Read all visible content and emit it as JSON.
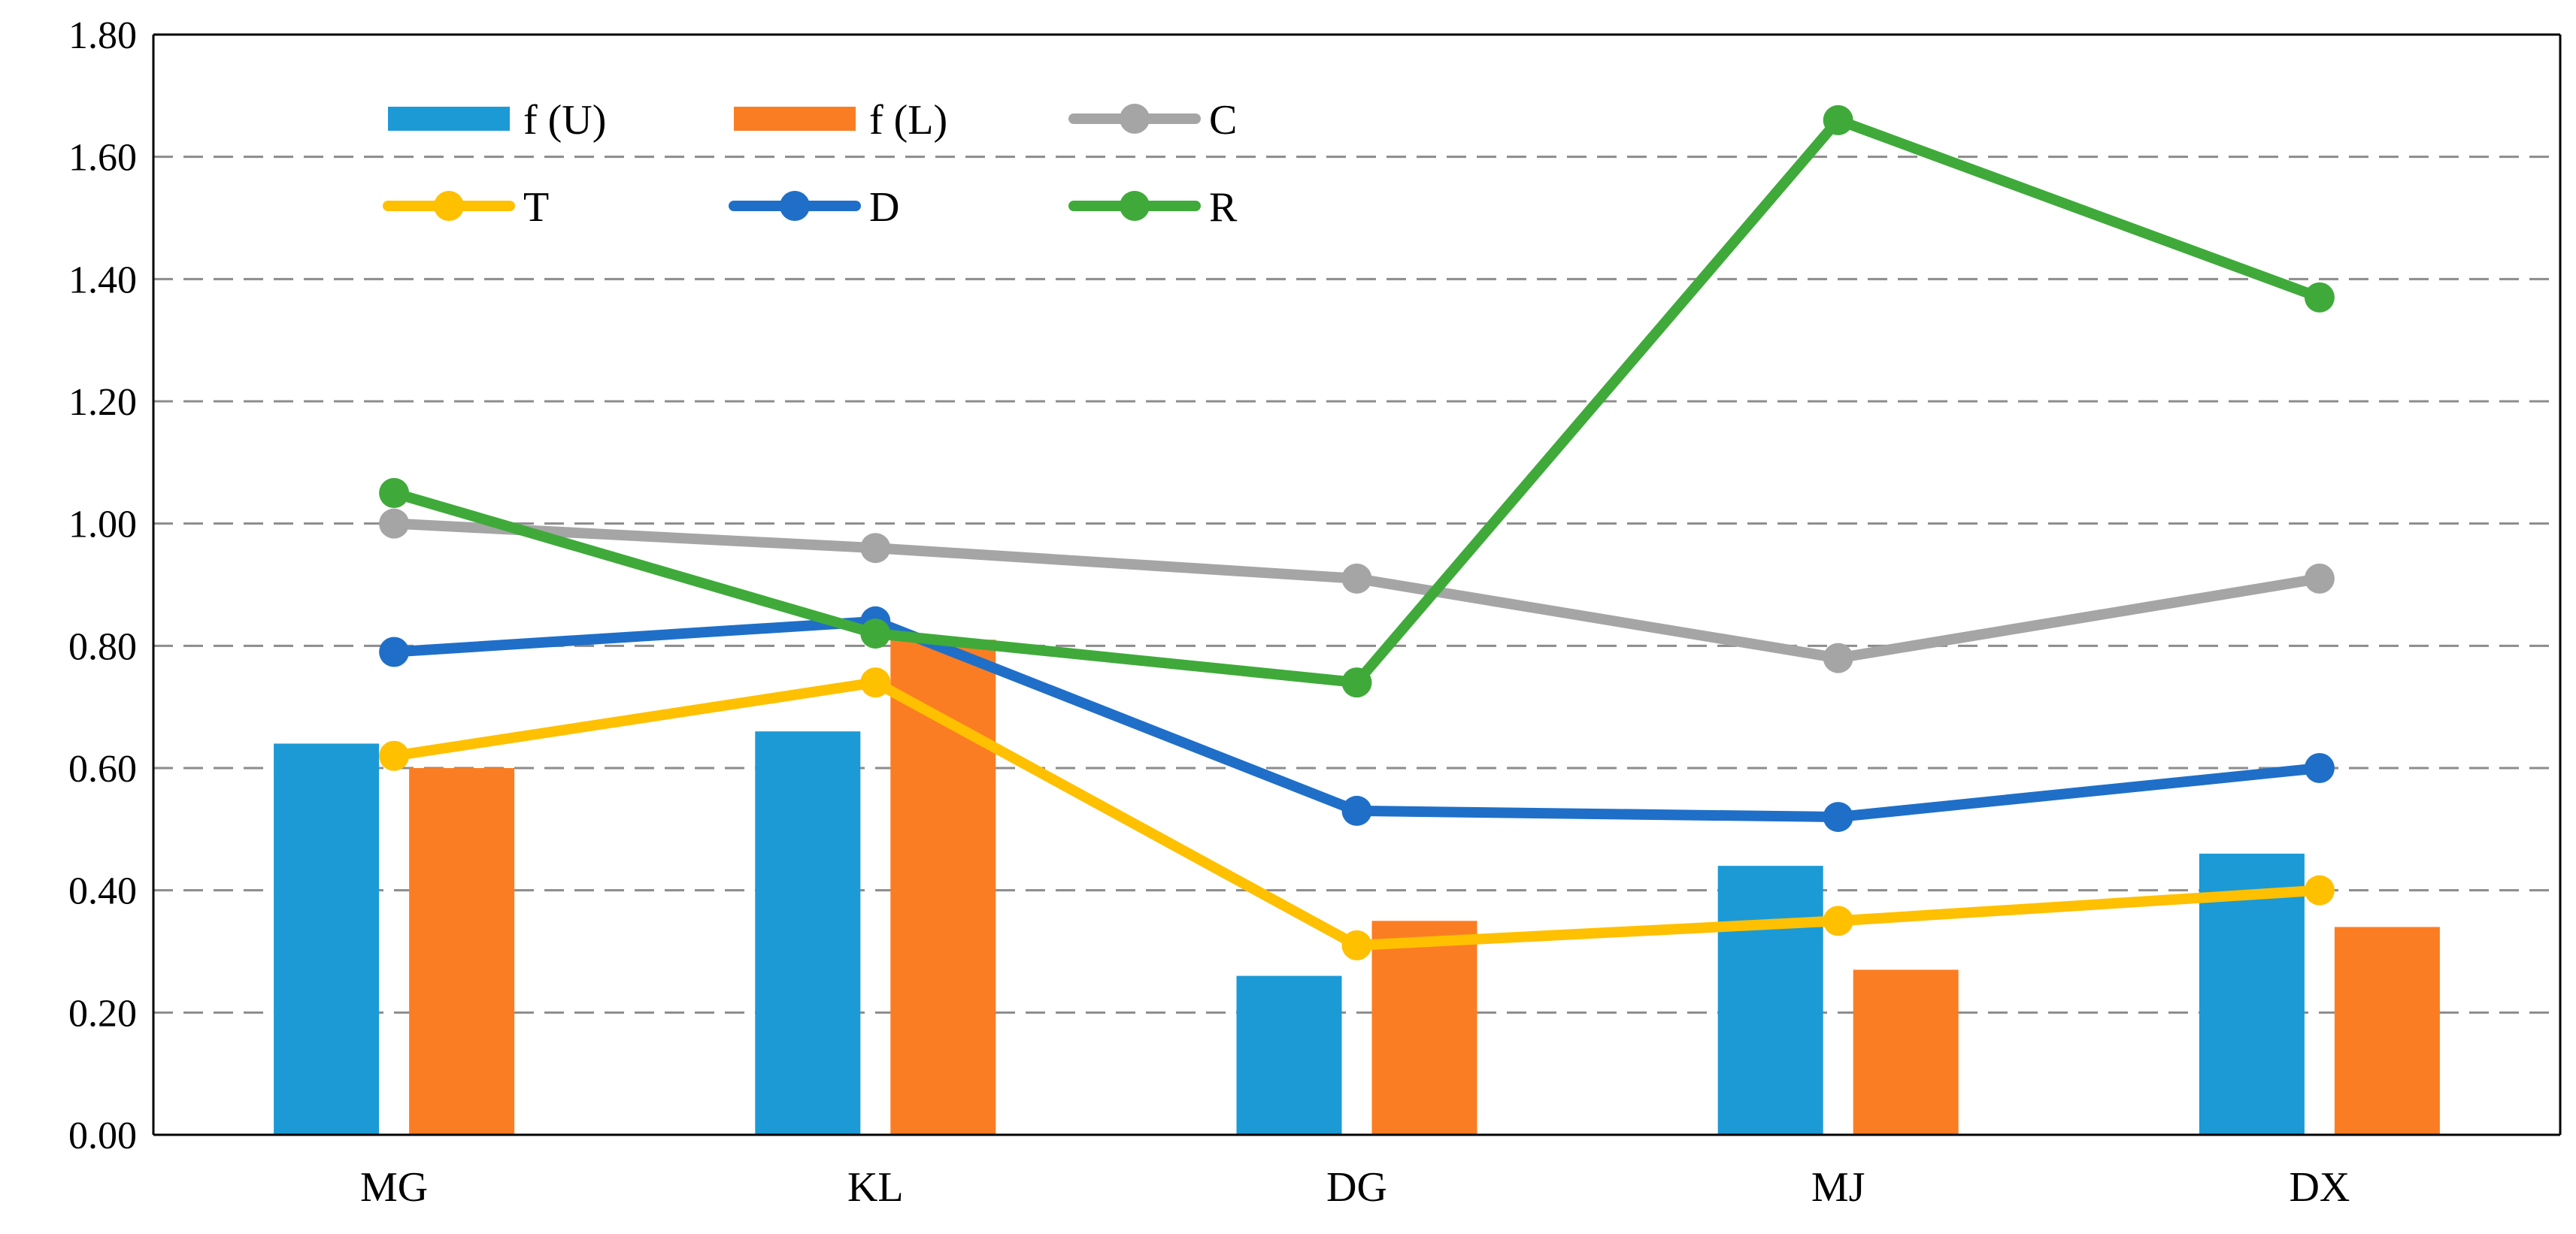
{
  "chart_data": {
    "type": "bar",
    "title": "",
    "xlabel": "",
    "ylabel": "",
    "categories": [
      "MG",
      "KL",
      "DG",
      "MJ",
      "DX"
    ],
    "ylim": [
      0,
      1.8
    ],
    "yticks": [
      "0.00",
      "0.20",
      "0.40",
      "0.60",
      "0.80",
      "1.00",
      "1.20",
      "1.40",
      "1.60",
      "1.80"
    ],
    "grid": "horizontal dashed",
    "legend_position": "top-left",
    "bar_series": [
      {
        "name": "f (U)",
        "color": "#1c9ad6",
        "values": [
          0.64,
          0.66,
          0.26,
          0.44,
          0.46
        ]
      },
      {
        "name": "f (L)",
        "color": "#fb7d23",
        "values": [
          0.6,
          0.81,
          0.35,
          0.27,
          0.34
        ]
      }
    ],
    "line_series": [
      {
        "name": "C",
        "color": "#a5a5a5",
        "values": [
          1.0,
          0.96,
          0.91,
          0.78,
          0.91
        ]
      },
      {
        "name": "T",
        "color": "#ffc000",
        "values": [
          0.62,
          0.74,
          0.31,
          0.35,
          0.4
        ]
      },
      {
        "name": "D",
        "color": "#1f6fc8",
        "values": [
          0.79,
          0.84,
          0.53,
          0.52,
          0.6
        ]
      },
      {
        "name": "R",
        "color": "#3faa3a",
        "values": [
          1.05,
          0.82,
          0.74,
          1.66,
          1.37
        ]
      }
    ]
  }
}
